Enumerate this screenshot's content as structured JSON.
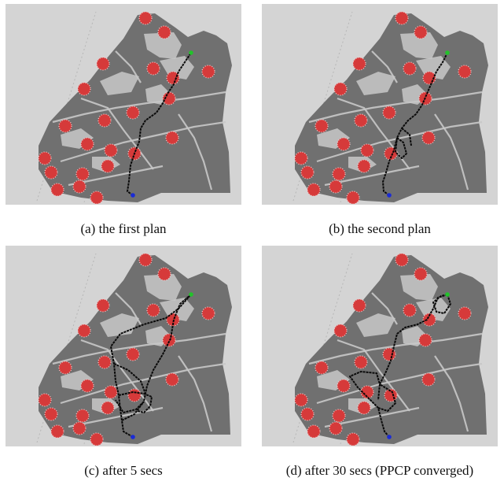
{
  "figure": {
    "panels": [
      {
        "id": "a",
        "caption": "(a) the first plan"
      },
      {
        "id": "b",
        "caption": "(b) the second plan"
      },
      {
        "id": "c",
        "caption": "(c) after 5 secs"
      },
      {
        "id": "d",
        "caption": "(d) after 30 secs (PPCP converged)"
      }
    ]
  },
  "colors": {
    "background": "#d4d4d4",
    "map_dark": "#707070",
    "map_light": "#c8c8c8",
    "obstacle": "#d63a3a",
    "path": "#0a0a0a",
    "start": "#1a2bd6",
    "goal": "#22c22a"
  }
}
